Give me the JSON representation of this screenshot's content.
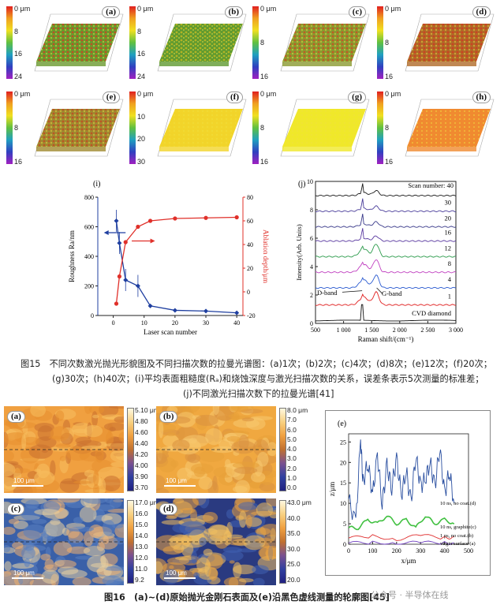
{
  "fig15": {
    "panels3d": [
      {
        "label": "(a)",
        "ticks": [
          "0 μm",
          "8",
          "16",
          "24"
        ],
        "surface": "#6a9a2e",
        "accent": "#e03020"
      },
      {
        "label": "(b)",
        "ticks": [
          "0 μm",
          "8",
          "16",
          "24"
        ],
        "surface": "#5f9a30",
        "accent": "#d8c020"
      },
      {
        "label": "(c)",
        "ticks": [
          "0 μm",
          "8",
          "16"
        ],
        "surface": "#8a9a30",
        "accent": "#d84020"
      },
      {
        "label": "(d)",
        "ticks": [
          "0 μm",
          "8",
          "16"
        ],
        "surface": "#b06a28",
        "accent": "#d83020"
      },
      {
        "label": "(e)",
        "ticks": [
          "0 μm",
          "8",
          "16"
        ],
        "surface": "#a08a30",
        "accent": "#c84020"
      },
      {
        "label": "(f)",
        "ticks": [
          "0 μm",
          "10",
          "20",
          "30"
        ],
        "surface": "#f2d52a",
        "accent": "#f2d52a"
      },
      {
        "label": "(g)",
        "ticks": [
          "0 μm",
          "8",
          "16"
        ],
        "surface": "#f0e82a",
        "accent": "#f0e82a"
      },
      {
        "label": "(h)",
        "ticks": [
          "0 μm",
          "8",
          "16"
        ],
        "surface": "#f08a30",
        "accent": "#f08a30"
      }
    ],
    "chart_i": {
      "label": "(i)",
      "xlabel": "Laser scan number",
      "ylabel_left": "Roughness Ra/nm",
      "ylabel_right": "Ablation depth/μm",
      "left_ticks": [
        "0",
        "200",
        "400",
        "600",
        "800"
      ],
      "right_ticks": [
        "-20",
        "0",
        "20",
        "40",
        "60",
        "80"
      ],
      "x_ticks": [
        "0",
        "10",
        "20",
        "30",
        "40"
      ]
    },
    "chart_j": {
      "label": "(j)",
      "xlabel": "Raman shift/(cm⁻¹)",
      "ylabel": "Intensity(Arb. Units)",
      "x_ticks": [
        "500",
        "1 000",
        "1 500",
        "2 000",
        "2 500",
        "3 000"
      ],
      "y_ticks": [
        "0",
        "2",
        "4",
        "6",
        "8",
        "10"
      ],
      "scan_title": "Scan number: 40",
      "series_labels": [
        "30",
        "20",
        "16",
        "12",
        "8",
        "4",
        "1",
        "CVD diamond"
      ],
      "annot_d": "D-band",
      "annot_g": "G-band"
    },
    "caption_lines": [
      "图15　不同次数激光抛光形貌图及不同扫描次数的拉曼光谱图：(a)1次；(b)2次；(c)4次；(d)8次；(e)12次；(f)20次；",
      "(g)30次；(h)40次；(i)平均表面粗糙度(Rₐ)和烧蚀深度与激光扫描次数的关系，误差条表示5次测量的标准差；",
      "(j)不同激光扫描次数下的拉曼光谱[41]"
    ]
  },
  "fig16": {
    "maps": [
      {
        "label": "(a)",
        "ticks": [
          "5.10 μm",
          "4.80",
          "4.60",
          "4.40",
          "4.20",
          "4.00",
          "3.90",
          "3.70"
        ],
        "scalebar": "100 μm"
      },
      {
        "label": "(b)",
        "ticks": [
          "8.0 μm",
          "7.0",
          "6.0",
          "5.0",
          "4.0",
          "3.0",
          "2.0",
          "1.0",
          "0.0"
        ],
        "scalebar": "100 μm"
      },
      {
        "label": "(c)",
        "ticks": [
          "17.0 μm",
          "16.0",
          "15.0",
          "14.0",
          "13.0",
          "12.0",
          "11.0",
          "9.2"
        ],
        "scalebar": "100 μm"
      },
      {
        "label": "(d)",
        "ticks": [
          "43.0 μm",
          "40.0",
          "35.0",
          "30.0",
          "25.0",
          "20.0"
        ],
        "scalebar": "100 μm"
      }
    ],
    "chart_e": {
      "label": "(e)",
      "xlabel": "x/μm",
      "ylabel": "z/μm",
      "x_ticks": [
        "0",
        "100",
        "200",
        "300",
        "400",
        "500"
      ],
      "y_ticks": [
        "0",
        "5",
        "10",
        "15",
        "20",
        "25"
      ],
      "labels": [
        "10 ns, no coat.(d)",
        "10 ns, graphite(c)",
        "1 ps, no coat.(b)",
        "virgin surface (a)"
      ]
    },
    "caption": "图16　(a)~(d)原始抛光金刚石表面及(e)沿黑色虚线测量的轮廓图[45]"
  },
  "watermark": "公众号 · 半导体在线",
  "chart_data": [
    {
      "type": "line",
      "title": "",
      "xlabel": "Laser scan number",
      "ylabel": "Roughness Ra/nm",
      "y2label": "Ablation depth/μm",
      "xlim": [
        -5,
        42
      ],
      "ylim": [
        0,
        800
      ],
      "y2lim": [
        -20,
        80
      ],
      "series": [
        {
          "name": "Roughness Ra",
          "axis": "left",
          "color": "#1f3fa0",
          "x": [
            1,
            2,
            4,
            8,
            12,
            20,
            30,
            40
          ],
          "y": [
            640,
            490,
            240,
            200,
            65,
            35,
            30,
            18
          ]
        },
        {
          "name": "Ablation depth",
          "axis": "right",
          "color": "#e0302a",
          "x": [
            1,
            2,
            4,
            8,
            12,
            20,
            30,
            40
          ],
          "y": [
            -10,
            13,
            42,
            55,
            60,
            62,
            62.5,
            63
          ]
        }
      ]
    },
    {
      "type": "line",
      "title": "",
      "xlabel": "Raman shift/(cm⁻¹)",
      "ylabel": "Intensity(Arb. Units)",
      "xlim": [
        500,
        3000
      ],
      "ylim": [
        0,
        10
      ],
      "series": [
        {
          "name": "40",
          "color": "#1a1a1a",
          "baseline": 9.0
        },
        {
          "name": "30",
          "color": "#4a3d9a",
          "baseline": 7.9
        },
        {
          "name": "20",
          "color": "#3a3a8a",
          "baseline": 6.8
        },
        {
          "name": "16",
          "color": "#5a3aa0",
          "baseline": 5.8
        },
        {
          "name": "12",
          "color": "#2a9a4a",
          "baseline": 4.7
        },
        {
          "name": "8",
          "color": "#c040c0",
          "baseline": 3.6
        },
        {
          "name": "4",
          "color": "#2a5ad0",
          "baseline": 2.5
        },
        {
          "name": "1",
          "color": "#e02020",
          "baseline": 1.3
        },
        {
          "name": "CVD diamond",
          "color": "#111111",
          "baseline": 0.2
        }
      ]
    },
    {
      "type": "line",
      "title": "",
      "xlabel": "x/μm",
      "ylabel": "z/μm",
      "xlim": [
        0,
        500
      ],
      "ylim": [
        0,
        27
      ],
      "series": [
        {
          "name": "10 ns, no coat.(d)",
          "color": "#2a4fa0",
          "x": [
            0,
            30,
            50,
            60,
            80,
            100,
            120,
            140,
            160,
            180,
            200,
            220,
            240,
            260,
            280,
            300,
            320,
            340,
            360,
            380,
            400,
            420,
            440
          ],
          "y": [
            11,
            5,
            26,
            15,
            20,
            12,
            22,
            10,
            19,
            14,
            21,
            12,
            18,
            10,
            22,
            14,
            16,
            20,
            14,
            24,
            12,
            18,
            10
          ]
        },
        {
          "name": "10 ns, graphite(c)",
          "color": "#40c040",
          "x": [
            0,
            40,
            80,
            120,
            160,
            200,
            240,
            280,
            320,
            360,
            400,
            440
          ],
          "y": [
            4,
            4,
            6,
            5,
            7,
            5,
            6,
            4,
            7,
            5,
            6,
            5
          ]
        },
        {
          "name": "1 ps, no coat.(b)",
          "color": "#e03030",
          "x": [
            0,
            100,
            200,
            300,
            400,
            440
          ],
          "y": [
            1.5,
            2,
            1.2,
            2.2,
            1.5,
            1.8
          ]
        },
        {
          "name": "virgin surface (a)",
          "color": "#7040c0",
          "x": [
            0,
            100,
            200,
            300,
            400,
            440
          ],
          "y": [
            0.3,
            0.4,
            0.3,
            0.4,
            0.3,
            0.3
          ]
        }
      ]
    }
  ]
}
